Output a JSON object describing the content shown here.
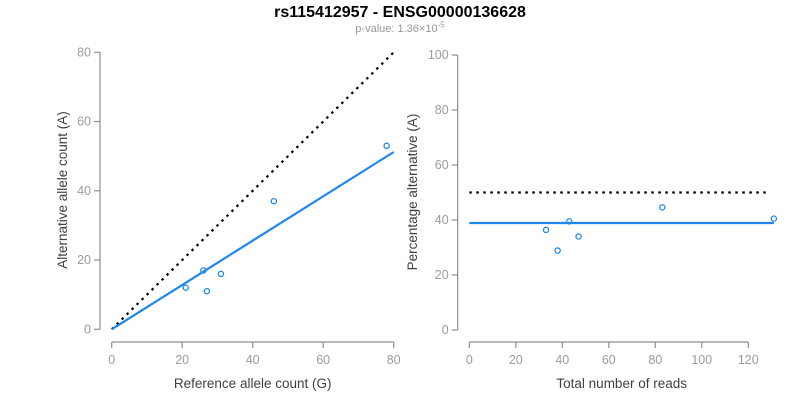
{
  "header": {
    "title": "rs115412957 - ENSG00000136628",
    "subtitle_prefix": "p-value: 1.36×10",
    "subtitle_exponent": "-5"
  },
  "colors": {
    "accent": "#1E87F0",
    "identity_line": "#000000",
    "axis": "#8F8F8F",
    "tick_label": "#9C9C9C",
    "axis_title": "#404040",
    "subtitle": "#979797"
  },
  "chart_data": [
    {
      "type": "scatter",
      "name": "allele-counts-plot",
      "xlabel": "Reference allele count (G)",
      "ylabel": "Alternative allele count (A)",
      "xlim": [
        0,
        80
      ],
      "ylim": [
        0,
        80
      ],
      "xticks": [
        0,
        20,
        40,
        60,
        80
      ],
      "yticks": [
        0,
        20,
        40,
        60,
        80
      ],
      "points": [
        [
          21,
          12
        ],
        [
          26,
          17
        ],
        [
          27,
          11
        ],
        [
          31,
          16
        ],
        [
          46,
          37
        ],
        [
          78,
          53
        ]
      ],
      "lines": [
        {
          "name": "identity-line",
          "style": "dotted",
          "color": "black",
          "x1": 0,
          "y1": 0,
          "x2": 80,
          "y2": 80
        },
        {
          "name": "regression-line",
          "style": "solid",
          "color": "blue",
          "x1": 0,
          "y1": 0,
          "x2": 80,
          "y2": 51.2
        }
      ]
    },
    {
      "type": "scatter",
      "name": "percentage-reads-plot",
      "xlabel": "Total number of reads",
      "ylabel": "Percentage alternative (A)",
      "xlim": [
        0,
        131
      ],
      "ylim": [
        0,
        100
      ],
      "xticks": [
        0,
        20,
        40,
        60,
        80,
        100,
        120
      ],
      "yticks": [
        0,
        20,
        40,
        60,
        80,
        100
      ],
      "points": [
        [
          33,
          36.4
        ],
        [
          43,
          39.5
        ],
        [
          38,
          28.9
        ],
        [
          47,
          34.0
        ],
        [
          83,
          44.6
        ],
        [
          131,
          40.5
        ]
      ],
      "lines": [
        {
          "name": "fifty-percent-line",
          "style": "dotted",
          "color": "black",
          "x1": 0,
          "y1": 50,
          "x2": 129,
          "y2": 50
        },
        {
          "name": "mean-percentage-line",
          "style": "solid",
          "color": "blue",
          "x1": 0,
          "y1": 38.9,
          "x2": 131,
          "y2": 38.9
        }
      ]
    }
  ]
}
